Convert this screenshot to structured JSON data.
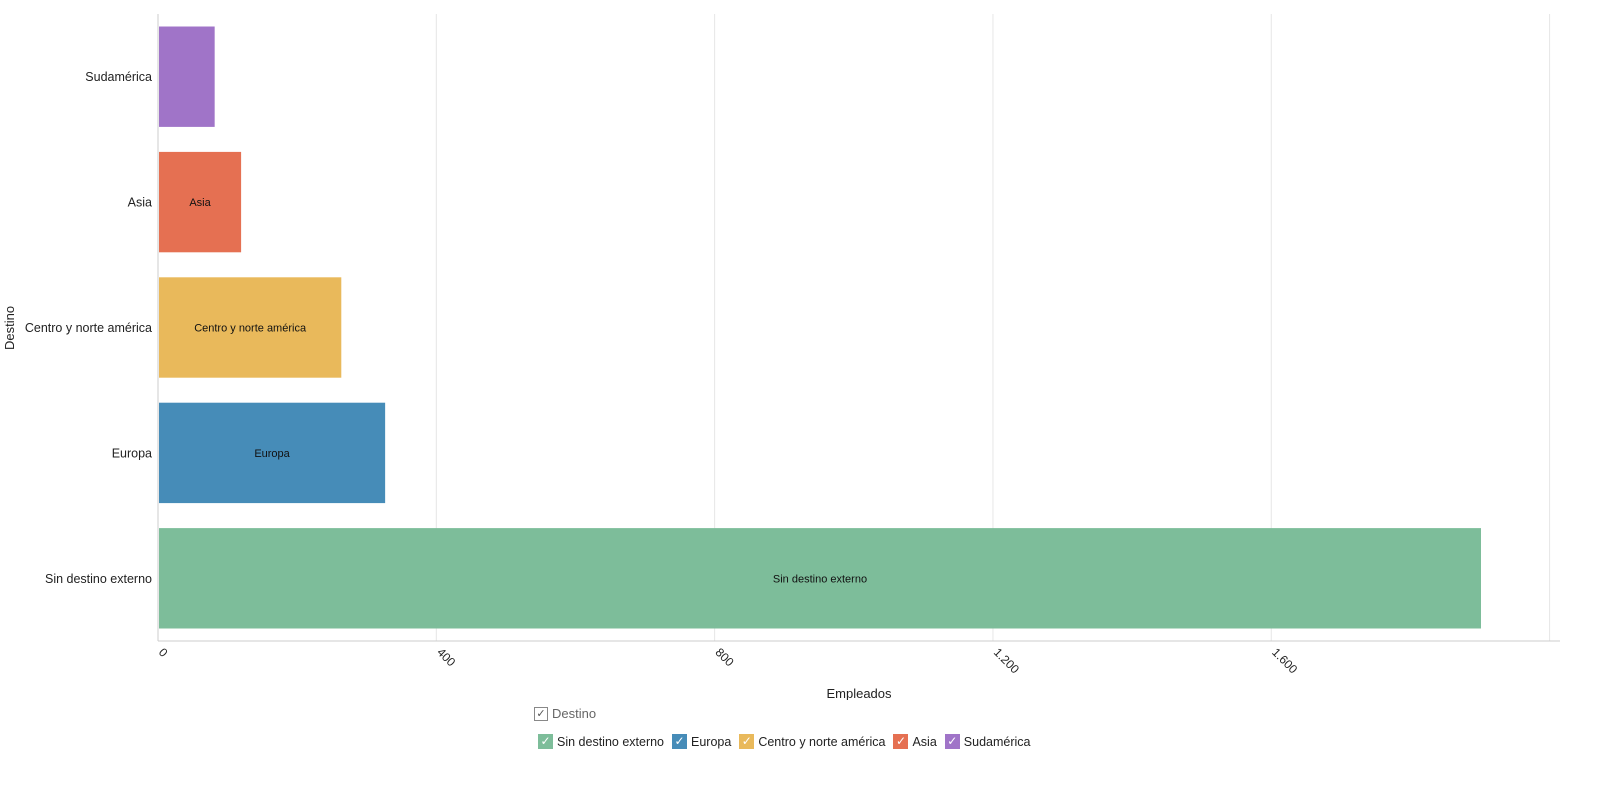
{
  "chart_data": {
    "type": "bar",
    "orientation": "horizontal",
    "ylabel": "Destino",
    "xlabel": "Empleados",
    "xlim": [
      0,
      2000
    ],
    "xticks": [
      "0",
      "400",
      "800",
      "1.200",
      "1.600"
    ],
    "xtick_values": [
      0,
      400,
      800,
      1200,
      1600
    ],
    "categories": [
      "Sudamérica",
      "Asia",
      "Centro y norte américa",
      "Europa",
      "Sin destino externo"
    ],
    "values": [
      80,
      118,
      262,
      325,
      1900
    ],
    "bar_labels": [
      "",
      "Asia",
      "Centro y norte américa",
      "Europa",
      "Sin destino externo"
    ],
    "colors": [
      "#a074c8",
      "#e57052",
      "#e9b95b",
      "#468cb8",
      "#7dbd9a"
    ],
    "grid": true,
    "legend_placement": "bottom"
  },
  "legend": {
    "title": "Destino",
    "check_glyph": "✓",
    "items": [
      {
        "label": "Sin destino externo",
        "color": "#7dbd9a"
      },
      {
        "label": "Europa",
        "color": "#468cb8"
      },
      {
        "label": "Centro y norte américa",
        "color": "#e9b95b"
      },
      {
        "label": "Asia",
        "color": "#e57052"
      },
      {
        "label": "Sudamérica",
        "color": "#a074c8"
      }
    ]
  }
}
